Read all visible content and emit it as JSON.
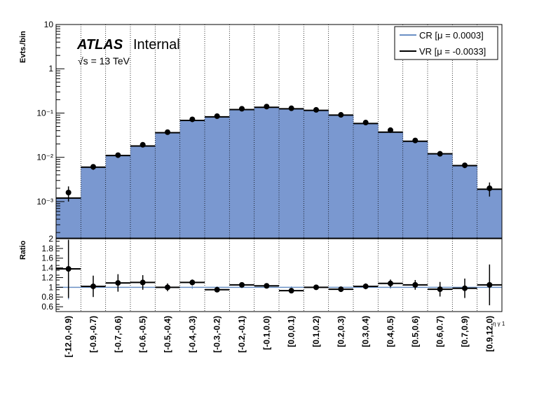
{
  "chart_data": {
    "type": "bar",
    "categories": [
      "[-12.0,-0.9)",
      "[-0.9,-0.7)",
      "[-0.7,-0.6)",
      "[-0.6,-0.5)",
      "[-0.5,-0.4)",
      "[-0.4,-0.3)",
      "[-0.3,-0.2)",
      "[-0.2,-0.1)",
      "[-0.1,0.0)",
      "[0.0,0.1)",
      "[0.1,0.2)",
      "[0.2,0.3)",
      "[0.3,0.4)",
      "[0.4,0.5)",
      "[0.5,0.6)",
      "[0.6,0.7)",
      "[0.7,0.9)",
      "[0.9,12.0)"
    ],
    "top_panel": {
      "ylabel": "Evts./bin",
      "yscale": "log",
      "ylim": [
        0.00015,
        10
      ],
      "y_tick_labels": [
        "10⁻³",
        "10⁻²",
        "10⁻¹",
        "1",
        "10"
      ],
      "series": [
        {
          "name": "CR [μ = 0.0003]",
          "style": "filled-histogram",
          "color": "#7a98d0",
          "values": [
            0.0012,
            0.006,
            0.011,
            0.018,
            0.036,
            0.068,
            0.082,
            0.12,
            0.135,
            0.125,
            0.115,
            0.09,
            0.058,
            0.037,
            0.023,
            0.012,
            0.0065,
            0.0019
          ]
        },
        {
          "name": "VR [μ = -0.0033]",
          "style": "points-with-errors",
          "color": "#000000",
          "values": [
            0.0016,
            0.0061,
            0.0112,
            0.0192,
            0.037,
            0.072,
            0.085,
            0.125,
            0.14,
            0.128,
            0.118,
            0.091,
            0.061,
            0.041,
            0.024,
            0.012,
            0.0066,
            0.002
          ],
          "errors_low": [
            0.0006,
            0.0009,
            0.0012,
            0.0015,
            0.0025,
            0.004,
            0.004,
            0.005,
            0.005,
            0.005,
            0.005,
            0.004,
            0.0035,
            0.003,
            0.002,
            0.0013,
            0.0009,
            0.0007
          ],
          "errors_high": [
            0.0006,
            0.0009,
            0.0012,
            0.0015,
            0.0025,
            0.004,
            0.004,
            0.005,
            0.005,
            0.005,
            0.005,
            0.004,
            0.0035,
            0.003,
            0.002,
            0.0013,
            0.0009,
            0.0007
          ]
        }
      ],
      "annotations": {
        "atlas": "ATLAS",
        "internal": "Internal",
        "energy": "√s = 13 TeV"
      },
      "legend_position": "top-right"
    },
    "ratio_panel": {
      "ylabel": "Ratio",
      "ylim": [
        0.5,
        2.0
      ],
      "y_ticks": [
        0.6,
        0.8,
        1.0,
        1.2,
        1.4,
        1.6,
        1.8,
        2.0
      ],
      "y_tick_labels": [
        "0.6",
        "0.8",
        "1",
        "1.2",
        "1.4",
        "1.6",
        "1.8",
        "2"
      ],
      "reference_line": 1.0,
      "values": [
        1.38,
        1.02,
        1.09,
        1.1,
        1.0,
        1.1,
        0.95,
        1.05,
        1.03,
        0.93,
        1.0,
        0.96,
        1.02,
        1.08,
        1.05,
        0.96,
        0.98,
        1.05
      ],
      "errors": [
        0.6,
        0.22,
        0.18,
        0.15,
        0.08,
        0.06,
        0.05,
        0.05,
        0.04,
        0.04,
        0.04,
        0.05,
        0.06,
        0.08,
        0.1,
        0.15,
        0.2,
        0.42
      ],
      "reference_errors": [
        0.25,
        0.06,
        0.05,
        0.04,
        0.03,
        0.03,
        0.02,
        0.02,
        0.02,
        0.02,
        0.02,
        0.02,
        0.03,
        0.03,
        0.04,
        0.05,
        0.06,
        0.2
      ],
      "xlabel": "η γ 1"
    },
    "grid": {
      "vertical": true,
      "style": "dotted"
    }
  }
}
